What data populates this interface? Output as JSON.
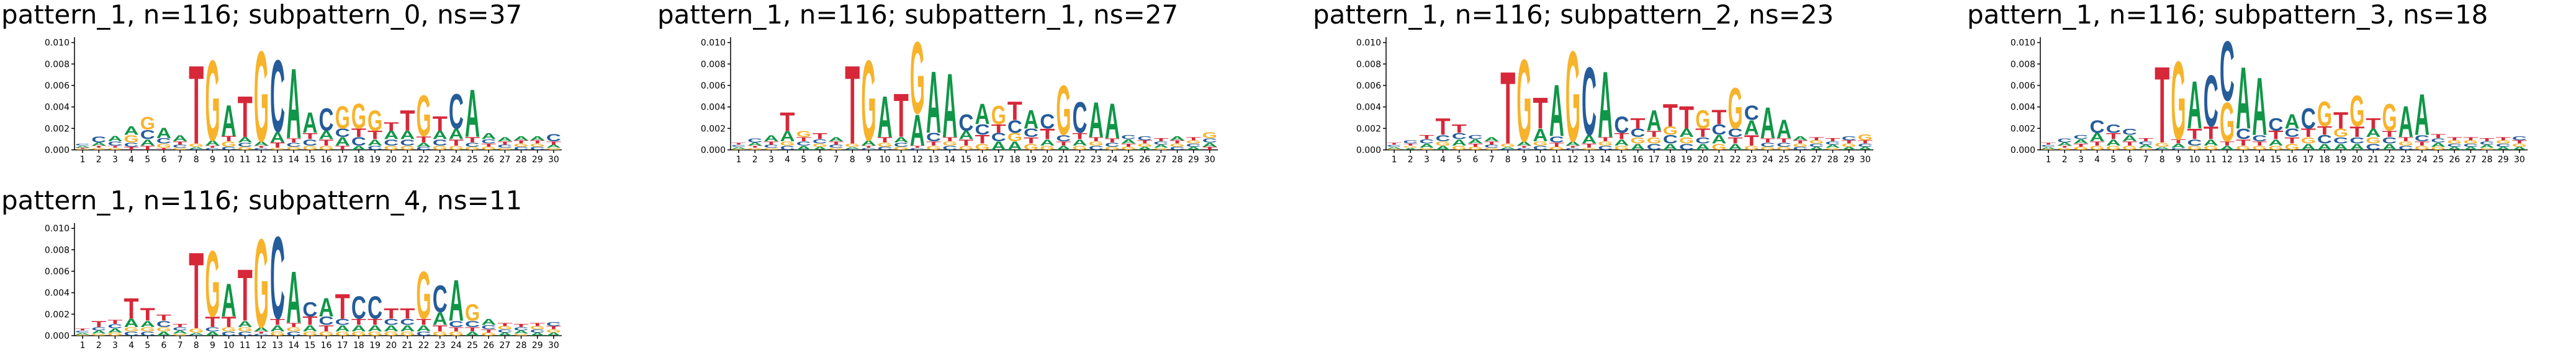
{
  "chart_data": [
    {
      "type": "logo",
      "title": "pattern_1, n=116; subpattern_0, ns=37",
      "categories": [
        1,
        2,
        3,
        4,
        5,
        6,
        7,
        8,
        9,
        10,
        11,
        12,
        13,
        14,
        15,
        16,
        17,
        18,
        19,
        20,
        21,
        22,
        23,
        24,
        25,
        26,
        27,
        28,
        29,
        30
      ],
      "ylim": [
        0,
        0.0105
      ],
      "yticks": [
        {
          "value": 0,
          "label": "0.000"
        },
        {
          "value": 0.002,
          "label": "0.002"
        },
        {
          "value": 0.004,
          "label": "0.004"
        },
        {
          "value": 0.006,
          "label": "0.006"
        },
        {
          "value": 0.008,
          "label": "0.008"
        },
        {
          "value": 0.01,
          "label": "0.010"
        }
      ],
      "series": [
        {
          "name": "A",
          "color": "#109648",
          "values": [
            0.0002,
            0.0003,
            0.0005,
            0.0008,
            0.0006,
            0.001,
            0.0006,
            0.0002,
            0.0005,
            0.003,
            0.0005,
            0.0004,
            0.001,
            0.0068,
            0.002,
            0.0008,
            0.0008,
            0.0004,
            0.0006,
            0.0008,
            0.0008,
            0.0004,
            0.0008,
            0.001,
            0.0046,
            0.0006,
            0.0004,
            0.0004,
            0.0004,
            0.0003
          ]
        },
        {
          "name": "C",
          "color": "#255c99",
          "values": [
            0.0002,
            0.0006,
            0.0004,
            0.0004,
            0.0009,
            0.0005,
            0.0003,
            0.0001,
            0.0002,
            0.0003,
            0.0004,
            0.0002,
            0.007,
            0.0004,
            0.0006,
            0.0022,
            0.0008,
            0.0008,
            0.0004,
            0.0006,
            0.0006,
            0.0003,
            0.0006,
            0.0034,
            0.0004,
            0.0004,
            0.0003,
            0.0003,
            0.0003,
            0.0007
          ]
        },
        {
          "name": "G",
          "color": "#f7b32b",
          "values": [
            0.0001,
            0.0002,
            0.0002,
            0.0007,
            0.0012,
            0.0004,
            0.0002,
            0.0003,
            0.0078,
            0.0005,
            0.0003,
            0.0088,
            0.0002,
            0.0003,
            0.0004,
            0.0004,
            0.0022,
            0.0024,
            0.002,
            0.0004,
            0.0004,
            0.004,
            0.0004,
            0.0004,
            0.0003,
            0.0003,
            0.0002,
            0.0003,
            0.0003,
            0.0002
          ]
        },
        {
          "name": "T",
          "color": "#d62839",
          "values": [
            0.0001,
            0.0002,
            0.0002,
            0.0003,
            0.0004,
            0.0002,
            0.0003,
            0.0076,
            0.0002,
            0.0005,
            0.004,
            0.0002,
            0.0005,
            0.0004,
            0.0006,
            0.0006,
            0.0004,
            0.0008,
            0.0008,
            0.0008,
            0.002,
            0.0006,
            0.0014,
            0.0006,
            0.0005,
            0.0003,
            0.0003,
            0.0003,
            0.0003,
            0.0003
          ]
        }
      ]
    },
    {
      "type": "logo",
      "title": "pattern_1, n=116; subpattern_1, ns=27",
      "categories": [
        1,
        2,
        3,
        4,
        5,
        6,
        7,
        8,
        9,
        10,
        11,
        12,
        13,
        14,
        15,
        16,
        17,
        18,
        19,
        20,
        21,
        22,
        23,
        24,
        25,
        26,
        27,
        28,
        29,
        30
      ],
      "ylim": [
        0,
        0.0105
      ],
      "yticks": [
        {
          "value": 0,
          "label": "0.000"
        },
        {
          "value": 0.002,
          "label": "0.002"
        },
        {
          "value": 0.004,
          "label": "0.004"
        },
        {
          "value": 0.006,
          "label": "0.006"
        },
        {
          "value": 0.008,
          "label": "0.008"
        },
        {
          "value": 0.01,
          "label": "0.010"
        }
      ],
      "series": [
        {
          "name": "A",
          "color": "#109648",
          "values": [
            0.0002,
            0.0003,
            0.0006,
            0.001,
            0.0004,
            0.0003,
            0.0004,
            0.0002,
            0.0005,
            0.004,
            0.0005,
            0.003,
            0.006,
            0.0062,
            0.0008,
            0.002,
            0.0008,
            0.0008,
            0.0018,
            0.0006,
            0.0004,
            0.0006,
            0.0034,
            0.0034,
            0.0004,
            0.0003,
            0.0003,
            0.0004,
            0.0003,
            0.0004
          ]
        },
        {
          "name": "C",
          "color": "#255c99",
          "values": [
            0.0002,
            0.0004,
            0.0003,
            0.0004,
            0.0004,
            0.0004,
            0.0003,
            0.0001,
            0.0002,
            0.0003,
            0.0004,
            0.0002,
            0.0008,
            0.0004,
            0.0016,
            0.001,
            0.0008,
            0.0012,
            0.0008,
            0.0014,
            0.0006,
            0.003,
            0.0004,
            0.0004,
            0.0004,
            0.0004,
            0.0003,
            0.0003,
            0.0003,
            0.0004
          ]
        },
        {
          "name": "G",
          "color": "#f7b32b",
          "values": [
            0.0001,
            0.0002,
            0.0002,
            0.0004,
            0.0006,
            0.0003,
            0.0002,
            0.0003,
            0.0078,
            0.0004,
            0.0003,
            0.007,
            0.0004,
            0.0004,
            0.0004,
            0.0006,
            0.0018,
            0.0008,
            0.0006,
            0.0004,
            0.0048,
            0.0004,
            0.0004,
            0.0003,
            0.0003,
            0.0003,
            0.0002,
            0.0003,
            0.0003,
            0.0006
          ]
        },
        {
          "name": "T",
          "color": "#d62839",
          "values": [
            0.0002,
            0.0002,
            0.0003,
            0.0018,
            0.0004,
            0.0006,
            0.0003,
            0.0076,
            0.0002,
            0.0005,
            0.0042,
            0.0002,
            0.0004,
            0.0004,
            0.0006,
            0.0008,
            0.0008,
            0.0018,
            0.0006,
            0.001,
            0.0004,
            0.0006,
            0.0004,
            0.0004,
            0.0003,
            0.0003,
            0.0003,
            0.0003,
            0.0003,
            0.0003
          ]
        }
      ]
    },
    {
      "type": "logo",
      "title": "pattern_1, n=116; subpattern_2, ns=23",
      "categories": [
        1,
        2,
        3,
        4,
        5,
        6,
        7,
        8,
        9,
        10,
        11,
        12,
        13,
        14,
        15,
        16,
        17,
        18,
        19,
        20,
        21,
        22,
        23,
        24,
        25,
        26,
        27,
        28,
        29,
        30
      ],
      "ylim": [
        0,
        0.0105
      ],
      "yticks": [
        {
          "value": 0,
          "label": "0.000"
        },
        {
          "value": 0.002,
          "label": "0.002"
        },
        {
          "value": 0.004,
          "label": "0.004"
        },
        {
          "value": 0.006,
          "label": "0.006"
        },
        {
          "value": 0.008,
          "label": "0.008"
        },
        {
          "value": 0.01,
          "label": "0.010"
        }
      ],
      "series": [
        {
          "name": "A",
          "color": "#109648",
          "values": [
            0.0002,
            0.0002,
            0.0004,
            0.0004,
            0.0006,
            0.0004,
            0.0004,
            0.0002,
            0.0004,
            0.0012,
            0.005,
            0.0004,
            0.0008,
            0.0064,
            0.0006,
            0.0006,
            0.002,
            0.0006,
            0.0008,
            0.0006,
            0.0008,
            0.0006,
            0.0014,
            0.003,
            0.0018,
            0.0004,
            0.0003,
            0.0003,
            0.0003,
            0.0003
          ]
        },
        {
          "name": "C",
          "color": "#255c99",
          "values": [
            0.0002,
            0.0003,
            0.0004,
            0.0006,
            0.0006,
            0.0004,
            0.0003,
            0.0001,
            0.0002,
            0.0004,
            0.0006,
            0.0002,
            0.0066,
            0.0004,
            0.0016,
            0.0008,
            0.0006,
            0.0008,
            0.0006,
            0.0006,
            0.001,
            0.0008,
            0.0014,
            0.0004,
            0.0004,
            0.0003,
            0.0003,
            0.0003,
            0.0004,
            0.0003
          ]
        },
        {
          "name": "G",
          "color": "#f7b32b",
          "values": [
            0.0001,
            0.0002,
            0.0002,
            0.0004,
            0.0004,
            0.0003,
            0.0002,
            0.0003,
            0.008,
            0.0004,
            0.0003,
            0.0088,
            0.0002,
            0.0004,
            0.0004,
            0.0006,
            0.0006,
            0.0008,
            0.0006,
            0.0018,
            0.0006,
            0.004,
            0.0004,
            0.0003,
            0.0003,
            0.0003,
            0.0003,
            0.0002,
            0.0003,
            0.0006
          ]
        },
        {
          "name": "T",
          "color": "#d62839",
          "values": [
            0.0002,
            0.0002,
            0.0004,
            0.0016,
            0.0008,
            0.0003,
            0.0003,
            0.007,
            0.0002,
            0.003,
            0.0004,
            0.0002,
            0.0004,
            0.0004,
            0.0006,
            0.001,
            0.0006,
            0.0022,
            0.0022,
            0.0008,
            0.0014,
            0.0006,
            0.001,
            0.0004,
            0.0004,
            0.0003,
            0.0003,
            0.0003,
            0.0003,
            0.0003
          ]
        }
      ]
    },
    {
      "type": "logo",
      "title": "pattern_1, n=116; subpattern_3, ns=18",
      "categories": [
        1,
        2,
        3,
        4,
        5,
        6,
        7,
        8,
        9,
        10,
        11,
        12,
        13,
        14,
        15,
        16,
        17,
        18,
        19,
        20,
        21,
        22,
        23,
        24,
        25,
        26,
        27,
        28,
        29,
        30
      ],
      "ylim": [
        0,
        0.0105
      ],
      "yticks": [
        {
          "value": 0,
          "label": "0.000"
        },
        {
          "value": 0.002,
          "label": "0.002"
        },
        {
          "value": 0.004,
          "label": "0.004"
        },
        {
          "value": 0.006,
          "label": "0.006"
        },
        {
          "value": 0.008,
          "label": "0.008"
        },
        {
          "value": 0.01,
          "label": "0.010"
        }
      ],
      "series": [
        {
          "name": "A",
          "color": "#109648",
          "values": [
            0.0002,
            0.0003,
            0.0004,
            0.0008,
            0.0006,
            0.0006,
            0.0003,
            0.0002,
            0.0004,
            0.0046,
            0.0006,
            0.0004,
            0.006,
            0.0056,
            0.0006,
            0.0014,
            0.0006,
            0.0006,
            0.0006,
            0.0006,
            0.0008,
            0.0006,
            0.003,
            0.004,
            0.0004,
            0.0003,
            0.0003,
            0.0003,
            0.0003,
            0.0003
          ]
        },
        {
          "name": "C",
          "color": "#255c99",
          "values": [
            0.0002,
            0.0004,
            0.0004,
            0.0012,
            0.0008,
            0.0006,
            0.0003,
            0.0001,
            0.0002,
            0.0006,
            0.005,
            0.0058,
            0.001,
            0.0006,
            0.0012,
            0.0008,
            0.002,
            0.0008,
            0.0006,
            0.0006,
            0.0006,
            0.0006,
            0.0004,
            0.0006,
            0.0004,
            0.0003,
            0.0003,
            0.0003,
            0.0003,
            0.0004
          ]
        },
        {
          "name": "G",
          "color": "#f7b32b",
          "values": [
            0.0001,
            0.0002,
            0.0003,
            0.0004,
            0.0004,
            0.0004,
            0.0002,
            0.0004,
            0.0076,
            0.0004,
            0.0004,
            0.0038,
            0.0004,
            0.0004,
            0.0004,
            0.0006,
            0.0006,
            0.0024,
            0.0008,
            0.003,
            0.0006,
            0.0026,
            0.0004,
            0.0004,
            0.0003,
            0.0003,
            0.0003,
            0.0002,
            0.0003,
            0.0003
          ]
        },
        {
          "name": "T",
          "color": "#d62839",
          "values": [
            0.0002,
            0.0002,
            0.0003,
            0.0004,
            0.0006,
            0.0004,
            0.0003,
            0.0074,
            0.0004,
            0.001,
            0.0012,
            0.0004,
            0.0006,
            0.0004,
            0.0008,
            0.0006,
            0.0008,
            0.0008,
            0.0016,
            0.001,
            0.001,
            0.0006,
            0.0004,
            0.0004,
            0.0004,
            0.0003,
            0.0003,
            0.0003,
            0.0003,
            0.0003
          ]
        }
      ]
    },
    {
      "type": "logo",
      "title": "pattern_1, n=116; subpattern_4, ns=11",
      "categories": [
        1,
        2,
        3,
        4,
        5,
        6,
        7,
        8,
        9,
        10,
        11,
        12,
        13,
        14,
        15,
        16,
        17,
        18,
        19,
        20,
        21,
        22,
        23,
        24,
        25,
        26,
        27,
        28,
        29,
        30
      ],
      "ylim": [
        0,
        0.0105
      ],
      "yticks": [
        {
          "value": 0,
          "label": "0.000"
        },
        {
          "value": 0.002,
          "label": "0.002"
        },
        {
          "value": 0.004,
          "label": "0.004"
        },
        {
          "value": 0.006,
          "label": "0.006"
        },
        {
          "value": 0.008,
          "label": "0.008"
        },
        {
          "value": 0.01,
          "label": "0.010"
        }
      ],
      "series": [
        {
          "name": "A",
          "color": "#109648",
          "values": [
            0.0002,
            0.0003,
            0.0004,
            0.0008,
            0.0006,
            0.0004,
            0.0003,
            0.0002,
            0.0004,
            0.0032,
            0.0006,
            0.0004,
            0.0006,
            0.005,
            0.0006,
            0.0018,
            0.0006,
            0.0006,
            0.0006,
            0.0006,
            0.0006,
            0.0006,
            0.0012,
            0.004,
            0.0004,
            0.0006,
            0.0003,
            0.0003,
            0.0003,
            0.0003
          ]
        },
        {
          "name": "C",
          "color": "#255c99",
          "values": [
            0.0002,
            0.0003,
            0.0004,
            0.0004,
            0.0004,
            0.0006,
            0.0003,
            0.0001,
            0.0004,
            0.0004,
            0.0004,
            0.0002,
            0.008,
            0.0004,
            0.0014,
            0.0008,
            0.0006,
            0.0022,
            0.0022,
            0.0006,
            0.0006,
            0.0004,
            0.0026,
            0.0006,
            0.0006,
            0.0004,
            0.0003,
            0.0003,
            0.0003,
            0.0004
          ]
        },
        {
          "name": "G",
          "color": "#f7b32b",
          "values": [
            0.0001,
            0.0002,
            0.0003,
            0.0004,
            0.0004,
            0.0004,
            0.0002,
            0.0004,
            0.0064,
            0.0004,
            0.0004,
            0.0086,
            0.0004,
            0.0004,
            0.0004,
            0.0004,
            0.0004,
            0.0004,
            0.0004,
            0.0004,
            0.0004,
            0.0046,
            0.0004,
            0.0004,
            0.0016,
            0.0003,
            0.0003,
            0.0002,
            0.0003,
            0.0003
          ]
        },
        {
          "name": "T",
          "color": "#d62839",
          "values": [
            0.0002,
            0.0006,
            0.0004,
            0.002,
            0.0012,
            0.0006,
            0.0003,
            0.0074,
            0.001,
            0.001,
            0.005,
            0.0002,
            0.0006,
            0.0004,
            0.0008,
            0.0006,
            0.0024,
            0.0006,
            0.0006,
            0.001,
            0.001,
            0.0006,
            0.0006,
            0.0004,
            0.0004,
            0.0003,
            0.0003,
            0.0003,
            0.0003,
            0.0003
          ]
        }
      ]
    }
  ]
}
